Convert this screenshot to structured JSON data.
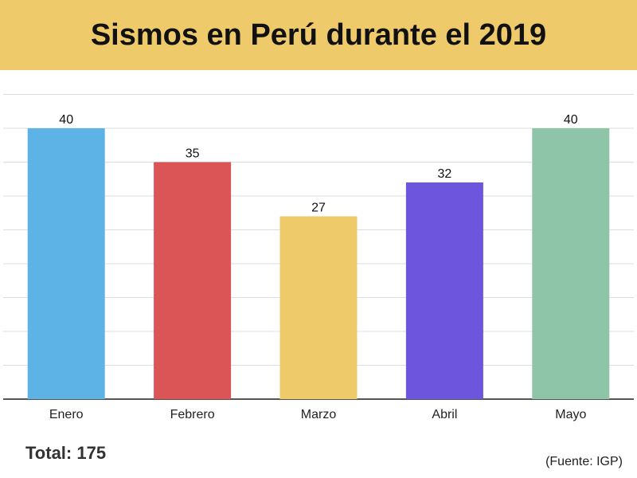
{
  "header": {
    "title": "Sismos en Perú durante el 2019"
  },
  "footer": {
    "total": "Total: 175",
    "source": "(Fuente: IGP)"
  },
  "colors": {
    "header_bg": "#EECA6B",
    "gridline": "#DDDDDD",
    "baseline": "#555555"
  },
  "chart_data": {
    "type": "bar",
    "title": "Sismos en Perú durante el 2019",
    "categories": [
      "Enero",
      "Febrero",
      "Marzo",
      "Abril",
      "Mayo"
    ],
    "values": [
      40,
      35,
      27,
      32,
      40
    ],
    "bar_colors": [
      "#5DB3E5",
      "#DB5456",
      "#EECA6B",
      "#6D55DD",
      "#8EC4A8"
    ],
    "ylim": [
      0,
      45
    ],
    "grid": true,
    "xlabel": "",
    "ylabel": ""
  }
}
